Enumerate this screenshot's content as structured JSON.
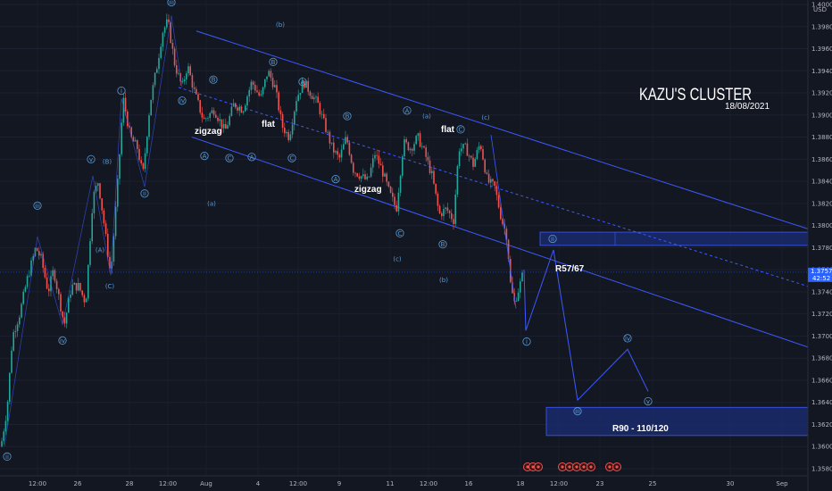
{
  "header": {
    "currency": "USD"
  },
  "title": {
    "main": "KAZU'S CLUSTER",
    "date": "18/08/2021"
  },
  "price_tag": {
    "price": "1.37578",
    "countdown": "42:52"
  },
  "annotations": {
    "zigzag_1": "zigzag",
    "flat_1": "flat",
    "zigzag_2": "zigzag",
    "flat_2": "flat",
    "r57": "R57/67",
    "r90": "R90 - 110/120"
  },
  "colors": {
    "background": "#131722",
    "up": "#26a69a",
    "down": "#ef5350",
    "channel": "#3d5afe",
    "wave_label": "#5b9bd5",
    "zone_fill": "#1b2a6b",
    "current_price": "#2962ff"
  },
  "chart_data": {
    "type": "candlestick",
    "instrument_quote": "USD",
    "y_ticks": [
      "1.40000",
      "1.39800",
      "1.39600",
      "1.39400",
      "1.39200",
      "1.39000",
      "1.38800",
      "1.38600",
      "1.38400",
      "1.38200",
      "1.38000",
      "1.37800",
      "1.37600",
      "1.37400",
      "1.37200",
      "1.37000",
      "1.36800",
      "1.36600",
      "1.36400",
      "1.36200",
      "1.36000",
      "1.35800"
    ],
    "x_ticks": [
      "12:00",
      "26",
      "28",
      "12:00",
      "Aug",
      "4",
      "12:00",
      "9",
      "11",
      "12:00",
      "16",
      "18",
      "12:00",
      "23",
      "25",
      "30",
      "Sep"
    ],
    "ylim": [
      1.3575,
      1.4002
    ],
    "current_price": 1.37578,
    "price_path": [
      {
        "t": 1,
        "p": 1.36
      },
      {
        "t": 8,
        "p": 1.3635
      },
      {
        "t": 14,
        "p": 1.37
      },
      {
        "t": 22,
        "p": 1.372
      },
      {
        "t": 30,
        "p": 1.375
      },
      {
        "t": 40,
        "p": 1.378
      },
      {
        "t": 46,
        "p": 1.377
      },
      {
        "t": 54,
        "p": 1.374
      },
      {
        "t": 60,
        "p": 1.376
      },
      {
        "t": 66,
        "p": 1.3735
      },
      {
        "t": 72,
        "p": 1.371
      },
      {
        "t": 80,
        "p": 1.3745
      },
      {
        "t": 88,
        "p": 1.3745
      },
      {
        "t": 96,
        "p": 1.373
      },
      {
        "t": 104,
        "p": 1.3825
      },
      {
        "t": 110,
        "p": 1.384
      },
      {
        "t": 116,
        "p": 1.3805
      },
      {
        "t": 124,
        "p": 1.3755
      },
      {
        "t": 132,
        "p": 1.384
      },
      {
        "t": 138,
        "p": 1.3915
      },
      {
        "t": 146,
        "p": 1.388
      },
      {
        "t": 154,
        "p": 1.387
      },
      {
        "t": 160,
        "p": 1.3845
      },
      {
        "t": 168,
        "p": 1.391
      },
      {
        "t": 176,
        "p": 1.3945
      },
      {
        "t": 182,
        "p": 1.3975
      },
      {
        "t": 188,
        "p": 1.3985
      },
      {
        "t": 196,
        "p": 1.3945
      },
      {
        "t": 204,
        "p": 1.3925
      },
      {
        "t": 210,
        "p": 1.3945
      },
      {
        "t": 218,
        "p": 1.392
      },
      {
        "t": 228,
        "p": 1.3895
      },
      {
        "t": 240,
        "p": 1.3905
      },
      {
        "t": 252,
        "p": 1.3885
      },
      {
        "t": 262,
        "p": 1.391
      },
      {
        "t": 272,
        "p": 1.3905
      },
      {
        "t": 282,
        "p": 1.393
      },
      {
        "t": 292,
        "p": 1.3915
      },
      {
        "t": 300,
        "p": 1.394
      },
      {
        "t": 308,
        "p": 1.3925
      },
      {
        "t": 316,
        "p": 1.389
      },
      {
        "t": 324,
        "p": 1.388
      },
      {
        "t": 332,
        "p": 1.3915
      },
      {
        "t": 340,
        "p": 1.393
      },
      {
        "t": 348,
        "p": 1.392
      },
      {
        "t": 356,
        "p": 1.391
      },
      {
        "t": 364,
        "p": 1.389
      },
      {
        "t": 372,
        "p": 1.387
      },
      {
        "t": 380,
        "p": 1.386
      },
      {
        "t": 388,
        "p": 1.388
      },
      {
        "t": 396,
        "p": 1.385
      },
      {
        "t": 404,
        "p": 1.3845
      },
      {
        "t": 412,
        "p": 1.384
      },
      {
        "t": 420,
        "p": 1.3865
      },
      {
        "t": 428,
        "p": 1.385
      },
      {
        "t": 436,
        "p": 1.383
      },
      {
        "t": 444,
        "p": 1.3815
      },
      {
        "t": 452,
        "p": 1.3875
      },
      {
        "t": 460,
        "p": 1.387
      },
      {
        "t": 468,
        "p": 1.388
      },
      {
        "t": 476,
        "p": 1.3865
      },
      {
        "t": 484,
        "p": 1.3845
      },
      {
        "t": 492,
        "p": 1.381
      },
      {
        "t": 500,
        "p": 1.3815
      },
      {
        "t": 508,
        "p": 1.3805
      },
      {
        "t": 514,
        "p": 1.387
      },
      {
        "t": 522,
        "p": 1.387
      },
      {
        "t": 530,
        "p": 1.3855
      },
      {
        "t": 538,
        "p": 1.3875
      },
      {
        "t": 546,
        "p": 1.384
      },
      {
        "t": 554,
        "p": 1.3835
      },
      {
        "t": 562,
        "p": 1.3805
      },
      {
        "t": 568,
        "p": 1.379
      },
      {
        "t": 572,
        "p": 1.3745
      },
      {
        "t": 576,
        "p": 1.373
      },
      {
        "t": 582,
        "p": 1.3745
      },
      {
        "t": 587,
        "p": 1.376
      }
    ],
    "channel_lines": [
      {
        "name": "upper",
        "x1": 220,
        "y1p": 1.3976,
        "x2": 905,
        "y2p": 1.3797
      },
      {
        "name": "lower",
        "x1": 215,
        "y1p": 1.388,
        "x2": 905,
        "y2p": 1.369
      },
      {
        "name": "mid",
        "x1": 200,
        "y1p": 1.3925,
        "x2": 905,
        "y2p": 1.3745,
        "dashed": true
      }
    ],
    "zones": [
      {
        "name": "R57/67",
        "x1": 605,
        "x2": 905,
        "p_top": 1.3794,
        "p_bottom": 1.3782
      },
      {
        "name": "R90 - 110/120",
        "x1": 612,
        "x2": 905,
        "p_top": 1.36355,
        "p_bottom": 1.361
      }
    ],
    "projection": [
      {
        "t": 587,
        "p": 1.376
      },
      {
        "t": 589,
        "p": 1.3705
      },
      {
        "t": 620,
        "p": 1.3778
      },
      {
        "t": 647,
        "p": 1.3642
      },
      {
        "t": 703,
        "p": 1.3688
      },
      {
        "t": 726,
        "p": 1.365
      }
    ],
    "wave_labels": [
      {
        "text": "ii",
        "t": 8,
        "p": 1.3591
      },
      {
        "text": "iii",
        "t": 42,
        "p": 1.3818
      },
      {
        "text": "iv",
        "t": 70,
        "p": 1.3696
      },
      {
        "text": "v",
        "t": 102,
        "p": 1.386
      },
      {
        "text": "(B)",
        "t": 120,
        "p": 1.3858
      },
      {
        "text": "(A)",
        "t": 112,
        "p": 1.3778
      },
      {
        "text": "(C)",
        "t": 123,
        "p": 1.3745
      },
      {
        "text": "i",
        "t": 136,
        "p": 1.3922
      },
      {
        "text": "ii",
        "t": 162,
        "p": 1.3829
      },
      {
        "text": "iii",
        "t": 192,
        "p": 1.4002
      },
      {
        "text": "iv",
        "t": 204,
        "p": 1.3913
      },
      {
        "text": "(b)",
        "t": 314,
        "p": 1.3982
      },
      {
        "text": "B",
        "t": 239,
        "p": 1.3932
      },
      {
        "text": "B",
        "t": 306,
        "p": 1.3948
      },
      {
        "text": "A",
        "t": 229,
        "p": 1.3863
      },
      {
        "text": "C",
        "t": 257,
        "p": 1.3861
      },
      {
        "text": "A",
        "t": 282,
        "p": 1.3862
      },
      {
        "text": "C",
        "t": 327,
        "p": 1.3861
      },
      {
        "text": "A",
        "t": 339,
        "p": 1.393
      },
      {
        "text": "B",
        "t": 389,
        "p": 1.3899
      },
      {
        "text": "A",
        "t": 376,
        "p": 1.3842
      },
      {
        "text": "C",
        "t": 448,
        "p": 1.3793
      },
      {
        "text": "A",
        "t": 456,
        "p": 1.3904
      },
      {
        "text": "B",
        "t": 496,
        "p": 1.3783
      },
      {
        "text": "C",
        "t": 516,
        "p": 1.3887
      },
      {
        "text": "(a)",
        "t": 237,
        "p": 1.382
      },
      {
        "text": "(a)",
        "t": 478,
        "p": 1.3899
      },
      {
        "text": "(c)",
        "t": 445,
        "p": 1.377
      },
      {
        "text": "(b)",
        "t": 497,
        "p": 1.3751
      },
      {
        "text": "(c)",
        "t": 544,
        "p": 1.3898
      },
      {
        "text": "ii",
        "t": 619,
        "p": 1.3788
      },
      {
        "text": "i",
        "t": 590,
        "p": 1.3695
      },
      {
        "text": "iii",
        "t": 647,
        "p": 1.3632
      },
      {
        "text": "iv",
        "t": 703,
        "p": 1.3698
      },
      {
        "text": "v",
        "t": 726,
        "p": 1.3641
      }
    ]
  }
}
